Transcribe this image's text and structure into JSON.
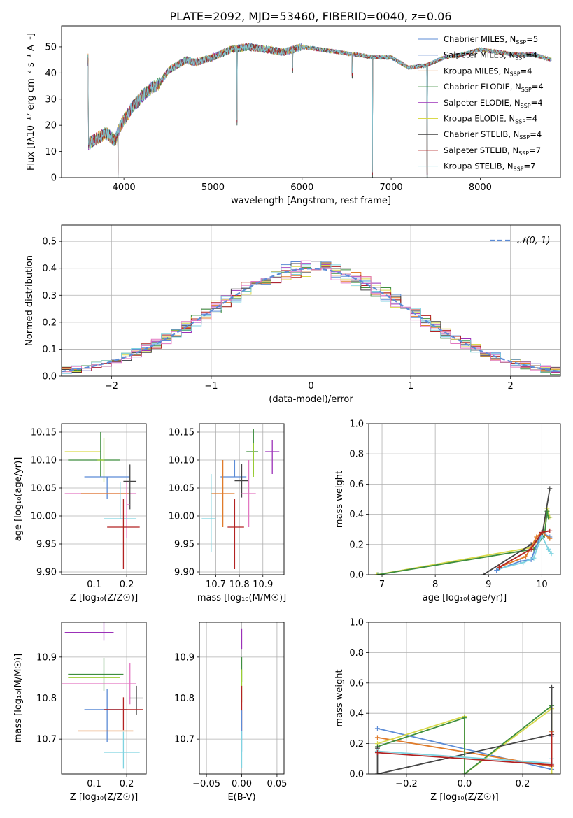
{
  "title": "PLATE=2092, MJD=53460, FIBERID=0040, z=0.06",
  "colors": {
    "chabrier_miles": "#5b8bd6",
    "salpeter_miles": "#3a6fc4",
    "kroupa_miles": "#e07b2a",
    "chabrier_elodie": "#3e8e3e",
    "salpeter_elodie": "#9b30b8",
    "kroupa_elodie": "#d9d94a",
    "chabrier_stelib": "#444444",
    "salpeter_stelib": "#b22222",
    "kroupa_stelib": "#7fd3e0",
    "pink": "#e377c2",
    "olive": "#9acd32",
    "gauss": "#5b8bd6"
  },
  "chart_data": [
    {
      "id": "spectrum",
      "type": "line",
      "xlabel": "wavelength [Angstrom, rest frame]",
      "ylabel": "Flux [fλ10⁻¹⁷ erg cm⁻² s⁻¹ A⁻¹]",
      "xlim": [
        3300,
        8900
      ],
      "ylim": [
        0,
        58
      ],
      "xticks": [
        4000,
        5000,
        6000,
        7000,
        8000
      ],
      "yticks": [
        0,
        10,
        20,
        30,
        40,
        50
      ],
      "legend_position": "top-right",
      "series": [
        {
          "name": "Chabrier MILES, N_SSP=5",
          "color_key": "chabrier_miles"
        },
        {
          "name": "Salpeter MILES, N_SSP=4",
          "color_key": "salpeter_miles"
        },
        {
          "name": "Kroupa MILES, N_SSP=4",
          "color_key": "kroupa_miles"
        },
        {
          "name": "Chabrier ELODIE, N_SSP=4",
          "color_key": "chabrier_elodie"
        },
        {
          "name": "Salpeter ELODIE, N_SSP=4",
          "color_key": "salpeter_elodie"
        },
        {
          "name": "Kroupa ELODIE, N_SSP=4",
          "color_key": "kroupa_elodie"
        },
        {
          "name": "Chabrier STELIB, N_SSP=4",
          "color_key": "chabrier_stelib"
        },
        {
          "name": "Salpeter STELIB, N_SSP=7",
          "color_key": "salpeter_stelib"
        },
        {
          "name": "Kroupa STELIB, N_SSP=7",
          "color_key": "kroupa_stelib"
        }
      ],
      "continuum": {
        "x": [
          3600,
          3700,
          3800,
          3900,
          3950,
          4000,
          4100,
          4200,
          4300,
          4400,
          4500,
          4600,
          4700,
          4800,
          4900,
          5000,
          5200,
          5400,
          5600,
          5800,
          6000,
          6200,
          6400,
          6600,
          6800,
          7000,
          7200,
          7400,
          7600,
          7800,
          8000,
          8200,
          8400,
          8600,
          8800
        ],
        "y": [
          13,
          15,
          17,
          14,
          19,
          22,
          27,
          31,
          34,
          36,
          41,
          43,
          45,
          44,
          45,
          46,
          49,
          50,
          49,
          48,
          50,
          49,
          48,
          47,
          46,
          46,
          42,
          43,
          46,
          47,
          49,
          48,
          47,
          47,
          45
        ]
      },
      "absorption": [
        {
          "x": 3934,
          "y": 0
        },
        {
          "x": 5270,
          "y": 20
        },
        {
          "x": 5892,
          "y": 40
        },
        {
          "x": 6563,
          "y": 38
        },
        {
          "x": 6790,
          "y": 0
        },
        {
          "x": 7405,
          "y": 0
        }
      ]
    },
    {
      "id": "residuals",
      "type": "step",
      "xlabel": "(data-model)/error",
      "ylabel": "Normed distribution",
      "xlim": [
        -2.5,
        2.5
      ],
      "ylim": [
        0,
        0.56
      ],
      "xticks": [
        -2,
        -1,
        0,
        1,
        2
      ],
      "yticks": [
        0.0,
        0.1,
        0.2,
        0.3,
        0.4,
        0.5
      ],
      "gauss_label": "𝒩(0, 1)",
      "bin_width": 0.1,
      "series_colors": [
        "chabrier_miles",
        "kroupa_miles",
        "chabrier_elodie",
        "salpeter_elodie",
        "kroupa_elodie",
        "chabrier_stelib",
        "salpeter_stelib",
        "kroupa_stelib",
        "pink"
      ]
    },
    {
      "id": "age_vs_Z",
      "type": "errorbar",
      "xlabel": "Z [log₁₀(Z/Z☉)]",
      "ylabel": "age  [log₁₀(age/yr)]",
      "xlim": [
        0.0,
        0.26
      ],
      "ylim": [
        9.895,
        10.165
      ],
      "xticks": [
        0.1,
        0.2
      ],
      "yticks": [
        9.9,
        9.95,
        10.0,
        10.05,
        10.1,
        10.15
      ],
      "points": [
        {
          "x": 0.07,
          "y": 10.115,
          "xe": [
            0.06,
            0.05
          ],
          "ye": [
            0.0,
            0.0
          ],
          "c": "kroupa_elodie"
        },
        {
          "x": 0.12,
          "y": 10.1,
          "xe": [
            0.1,
            0.06
          ],
          "ye": [
            0.03,
            0.05
          ],
          "c": "chabrier_elodie"
        },
        {
          "x": 0.13,
          "y": 10.1,
          "xe": [
            0.02,
            0.0
          ],
          "ye": [
            0.04,
            0.04
          ],
          "c": "olive"
        },
        {
          "x": 0.14,
          "y": 10.07,
          "xe": [
            0.07,
            0.07
          ],
          "ye": [
            0.04,
            0.0
          ],
          "c": "chabrier_miles"
        },
        {
          "x": 0.07,
          "y": 10.04,
          "xe": [
            0.06,
            0.16
          ],
          "ye": [
            0.0,
            0.0
          ],
          "c": "pink"
        },
        {
          "x": 0.15,
          "y": 10.04,
          "xe": [
            0.09,
            0.06
          ],
          "ye": [
            0.0,
            0.0
          ],
          "c": "kroupa_miles"
        },
        {
          "x": 0.21,
          "y": 10.062,
          "xe": [
            0.02,
            0.02
          ],
          "ye": [
            0.05,
            0.03
          ],
          "c": "chabrier_stelib"
        },
        {
          "x": 0.2,
          "y": 10.02,
          "xe": [
            0.0,
            0.01
          ],
          "ye": [
            0.06,
            0.04
          ],
          "c": "pink"
        },
        {
          "x": 0.18,
          "y": 9.995,
          "xe": [
            0.05,
            0.05
          ],
          "ye": [
            0.0,
            0.065
          ],
          "c": "kroupa_stelib"
        },
        {
          "x": 0.19,
          "y": 9.98,
          "xe": [
            0.05,
            0.05
          ],
          "ye": [
            0.075,
            0.05
          ],
          "c": "salpeter_stelib"
        }
      ]
    },
    {
      "id": "age_vs_mass",
      "type": "errorbar",
      "xlabel": "mass [log₁₀(M/M☉)]",
      "ylabel": "",
      "xlim": [
        10.63,
        10.99
      ],
      "ylim": [
        9.895,
        10.165
      ],
      "xticks": [
        10.7,
        10.8,
        10.9
      ],
      "yticks": [
        9.9,
        9.95,
        10.0,
        10.05,
        10.1,
        10.15
      ],
      "points": [
        {
          "x": 10.86,
          "y": 10.115,
          "xe": [
            0.03,
            0.02
          ],
          "ye": [
            0.04,
            0.04
          ],
          "c": "chabrier_elodie"
        },
        {
          "x": 10.86,
          "y": 10.1,
          "xe": [
            0.0,
            0.0
          ],
          "ye": [
            0.03,
            0.03
          ],
          "c": "olive"
        },
        {
          "x": 10.94,
          "y": 10.115,
          "xe": [
            0.03,
            0.03
          ],
          "ye": [
            0.04,
            0.02
          ],
          "c": "salpeter_elodie"
        },
        {
          "x": 10.78,
          "y": 10.07,
          "xe": [
            0.06,
            0.05
          ],
          "ye": [
            0.0,
            0.03
          ],
          "c": "chabrier_miles"
        },
        {
          "x": 10.81,
          "y": 10.063,
          "xe": [
            0.03,
            0.03
          ],
          "ye": [
            0.03,
            0.03
          ],
          "c": "chabrier_stelib"
        },
        {
          "x": 10.73,
          "y": 10.04,
          "xe": [
            0.05,
            0.05
          ],
          "ye": [
            0.06,
            0.06
          ],
          "c": "kroupa_miles"
        },
        {
          "x": 10.84,
          "y": 10.04,
          "xe": [
            0.03,
            0.03
          ],
          "ye": [
            0.06,
            0.06
          ],
          "c": "pink"
        },
        {
          "x": 10.68,
          "y": 9.995,
          "xe": [
            0.04,
            0.02
          ],
          "ye": [
            0.06,
            0.08
          ],
          "c": "kroupa_stelib"
        },
        {
          "x": 10.78,
          "y": 9.98,
          "xe": [
            0.03,
            0.04
          ],
          "ye": [
            0.075,
            0.05
          ],
          "c": "salpeter_stelib"
        }
      ]
    },
    {
      "id": "weight_vs_age",
      "type": "line",
      "xlabel": "age  [log₁₀(age/yr)]",
      "ylabel": "mass weight",
      "xlim": [
        6.75,
        10.35
      ],
      "ylim": [
        0,
        1.0
      ],
      "xticks": [
        7,
        8,
        9,
        10
      ],
      "yticks": [
        0.0,
        0.2,
        0.4,
        0.6,
        0.8,
        1.0
      ],
      "series": [
        {
          "c": "kroupa_elodie",
          "x": [
            6.9,
            9.8,
            10.0,
            10.1,
            10.15
          ],
          "y": [
            0.0,
            0.18,
            0.25,
            0.44,
            0.38
          ]
        },
        {
          "c": "chabrier_elodie",
          "x": [
            6.92,
            9.85,
            10.05,
            10.1,
            10.12
          ],
          "y": [
            0.0,
            0.17,
            0.26,
            0.42,
            0.38
          ]
        },
        {
          "c": "chabrier_stelib",
          "x": [
            8.9,
            9.8,
            10.0,
            10.15
          ],
          "y": [
            0.0,
            0.2,
            0.25,
            0.57
          ]
        },
        {
          "c": "chabrier_miles",
          "x": [
            9.15,
            9.6,
            9.8,
            10.0,
            10.15
          ],
          "y": [
            0.03,
            0.09,
            0.1,
            0.28,
            0.25
          ]
        },
        {
          "c": "kroupa_miles",
          "x": [
            9.2,
            9.7,
            9.9,
            10.0,
            10.15
          ],
          "y": [
            0.05,
            0.12,
            0.25,
            0.28,
            0.24
          ]
        },
        {
          "c": "kroupa_stelib",
          "x": [
            9.2,
            9.65,
            9.85,
            10.0,
            10.12,
            10.18
          ],
          "y": [
            0.04,
            0.08,
            0.11,
            0.26,
            0.17,
            0.14
          ]
        },
        {
          "c": "salpeter_stelib",
          "x": [
            9.2,
            9.8,
            10.0,
            10.15
          ],
          "y": [
            0.05,
            0.17,
            0.28,
            0.29
          ]
        }
      ]
    },
    {
      "id": "mass_vs_Z",
      "type": "errorbar",
      "xlabel": "Z [log₁₀(Z/Z☉)]",
      "ylabel": "mass [log₁₀(M/M☉)]",
      "xlim": [
        0.0,
        0.26
      ],
      "ylim": [
        10.615,
        10.985
      ],
      "xticks": [
        0.1,
        0.2
      ],
      "yticks": [
        10.7,
        10.8,
        10.9
      ],
      "points": [
        {
          "x": 0.12,
          "y": 10.96,
          "xe": [
            0.11,
            0.04
          ],
          "ye": [
            0.0,
            0.0
          ],
          "c": "salpeter_elodie"
        },
        {
          "x": 0.13,
          "y": 10.96,
          "xe": [
            0.0,
            0.0
          ],
          "ye": [
            0.02,
            0.03
          ],
          "c": "salpeter_elodie"
        },
        {
          "x": 0.12,
          "y": 10.858,
          "xe": [
            0.1,
            0.07
          ],
          "ye": [
            0.0,
            0.0
          ],
          "c": "chabrier_elodie"
        },
        {
          "x": 0.13,
          "y": 10.858,
          "xe": [
            0.0,
            0.0
          ],
          "ye": [
            0.04,
            0.04
          ],
          "c": "chabrier_elodie"
        },
        {
          "x": 0.12,
          "y": 10.85,
          "xe": [
            0.1,
            0.06
          ],
          "ye": [
            0.0,
            0.0
          ],
          "c": "olive"
        },
        {
          "x": 0.1,
          "y": 10.835,
          "xe": [
            0.1,
            0.13
          ],
          "ye": [
            0.0,
            0.0
          ],
          "c": "pink"
        },
        {
          "x": 0.21,
          "y": 10.835,
          "xe": [
            0.0,
            0.0
          ],
          "ye": [
            0.05,
            0.05
          ],
          "c": "pink"
        },
        {
          "x": 0.23,
          "y": 10.8,
          "xe": [
            0.02,
            0.02
          ],
          "ye": [
            0.04,
            0.03
          ],
          "c": "chabrier_stelib"
        },
        {
          "x": 0.14,
          "y": 10.772,
          "xe": [
            0.07,
            0.06
          ],
          "ye": [
            0.08,
            0.05
          ],
          "c": "chabrier_miles"
        },
        {
          "x": 0.19,
          "y": 10.772,
          "xe": [
            0.06,
            0.06
          ],
          "ye": [
            0.05,
            0.03
          ],
          "c": "salpeter_stelib"
        },
        {
          "x": 0.14,
          "y": 10.72,
          "xe": [
            0.09,
            0.08
          ],
          "ye": [
            0.0,
            0.0
          ],
          "c": "kroupa_miles"
        },
        {
          "x": 0.19,
          "y": 10.668,
          "xe": [
            0.06,
            0.05
          ],
          "ye": [
            0.04,
            0.05
          ],
          "c": "kroupa_stelib"
        }
      ]
    },
    {
      "id": "mass_vs_ebv",
      "type": "errorbar",
      "xlabel": "E(B-V)",
      "ylabel": "",
      "xlim": [
        -0.06,
        0.06
      ],
      "ylim": [
        10.615,
        10.985
      ],
      "xticks": [
        -0.05,
        0.0,
        0.05
      ],
      "yticks": [
        10.7,
        10.8,
        10.9
      ],
      "points": [
        {
          "x": 0.0,
          "y": 10.94,
          "xe": [
            0,
            0
          ],
          "ye": [
            0.02,
            0.03
          ],
          "c": "salpeter_elodie"
        },
        {
          "x": 0.0,
          "y": 10.87,
          "xe": [
            0,
            0
          ],
          "ye": [
            0.03,
            0.03
          ],
          "c": "chabrier_elodie"
        },
        {
          "x": 0.0,
          "y": 10.83,
          "xe": [
            0,
            0
          ],
          "ye": [
            0.04,
            0.04
          ],
          "c": "olive"
        },
        {
          "x": 0.0,
          "y": 10.78,
          "xe": [
            0,
            0
          ],
          "ye": [
            0.06,
            0.05
          ],
          "c": "salpeter_stelib"
        },
        {
          "x": 0.0,
          "y": 10.72,
          "xe": [
            0,
            0
          ],
          "ye": [
            0.05,
            0.05
          ],
          "c": "chabrier_miles"
        },
        {
          "x": 0.0,
          "y": 10.67,
          "xe": [
            0,
            0
          ],
          "ye": [
            0.04,
            0.05
          ],
          "c": "kroupa_stelib"
        }
      ]
    },
    {
      "id": "weight_vs_Z",
      "type": "line",
      "xlabel": "Z [log₁₀(Z/Z☉)]",
      "ylabel": "mass weight",
      "xlim": [
        -0.33,
        0.33
      ],
      "ylim": [
        0,
        1.0
      ],
      "xticks": [
        -0.2,
        0.0,
        0.2
      ],
      "yticks": [
        0.0,
        0.2,
        0.4,
        0.6,
        0.8,
        1.0
      ],
      "series": [
        {
          "c": "chabrier_miles",
          "x": [
            -0.3,
            0.3,
            0.3
          ],
          "y": [
            0.3,
            0.03,
            0.25
          ]
        },
        {
          "c": "kroupa_miles",
          "x": [
            -0.3,
            0.3,
            0.3
          ],
          "y": [
            0.24,
            0.05,
            0.28
          ]
        },
        {
          "c": "kroupa_elodie",
          "x": [
            -0.3,
            0.0,
            0.0,
            0.3,
            0.3
          ],
          "y": [
            0.2,
            0.38,
            0.0,
            0.43,
            0.0
          ]
        },
        {
          "c": "chabrier_elodie",
          "x": [
            -0.3,
            0.0,
            0.0,
            0.3
          ],
          "y": [
            0.18,
            0.37,
            0.0,
            0.45
          ]
        },
        {
          "c": "chabrier_stelib",
          "x": [
            -0.3,
            -0.3,
            0.3,
            0.3
          ],
          "y": [
            0.17,
            0.0,
            0.26,
            0.57
          ]
        },
        {
          "c": "kroupa_stelib",
          "x": [
            -0.3,
            0.3,
            0.3
          ],
          "y": [
            0.15,
            0.07,
            0.1
          ]
        },
        {
          "c": "salpeter_stelib",
          "x": [
            -0.3,
            0.3,
            0.3
          ],
          "y": [
            0.14,
            0.06,
            0.27
          ]
        }
      ]
    }
  ]
}
